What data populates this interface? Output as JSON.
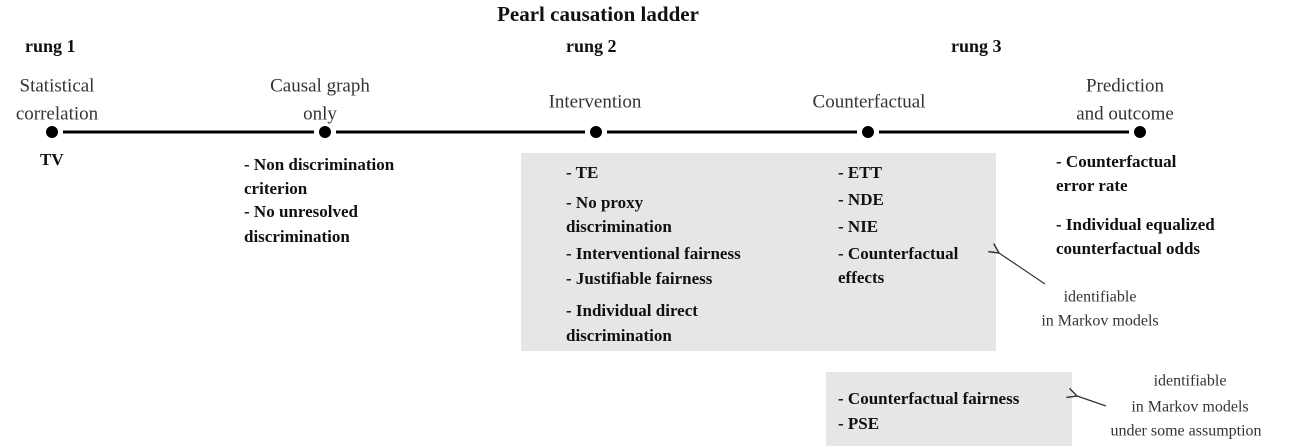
{
  "title": "Pearl causation ladder",
  "rungs": [
    "rung 1",
    "rung 2",
    "rung 3"
  ],
  "stages": [
    {
      "label": [
        "Statistical",
        "correlation"
      ],
      "items": [
        [
          "TV"
        ]
      ]
    },
    {
      "label": [
        "Causal graph",
        "only"
      ],
      "items": [
        [
          "- Non discrimination",
          "criterion"
        ],
        [
          "- No unresolved",
          "discrimination"
        ]
      ]
    },
    {
      "label": [
        "Intervention"
      ],
      "items": [
        [
          "- TE"
        ],
        [
          "- No proxy",
          "discrimination"
        ],
        [
          "- Interventional fairness"
        ],
        [
          "- Justifiable fairness"
        ],
        [
          "- Individual direct",
          "discrimination"
        ]
      ]
    },
    {
      "label": [
        "Counterfactual"
      ],
      "items": [
        [
          "- ETT"
        ],
        [
          "- NDE"
        ],
        [
          "- NIE"
        ],
        [
          "- Counterfactual",
          "effects"
        ]
      ]
    },
    {
      "label": [
        "Prediction",
        "and outcome"
      ],
      "items": [
        [
          "- Counterfactual",
          "error rate"
        ],
        [
          "- Individual equalized",
          "counterfactual odds"
        ]
      ]
    }
  ],
  "extra_box": {
    "items": [
      "- Counterfactual fairness",
      "- PSE"
    ]
  },
  "annotations": [
    [
      "identifiable",
      "in Markov models"
    ],
    [
      "identifiable",
      "in Markov models",
      "under some assumption"
    ]
  ]
}
